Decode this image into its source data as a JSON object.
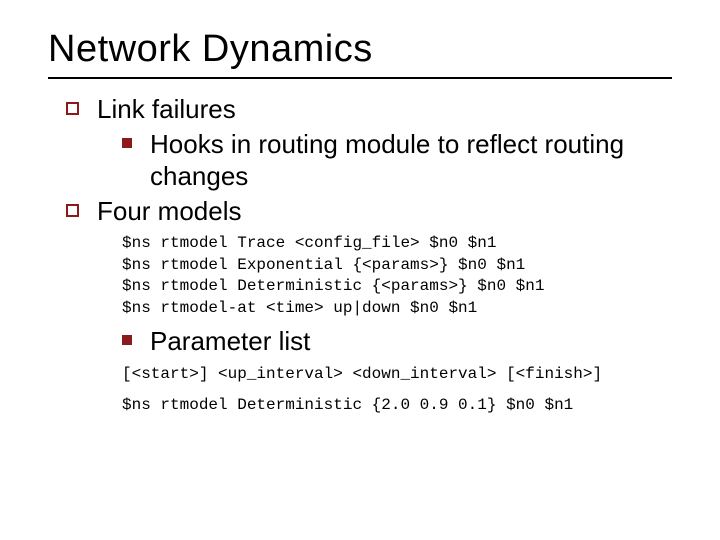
{
  "colors": {
    "background": "#ffffff",
    "text": "#000000",
    "bullet": "#8b1a1a",
    "rule": "#000000"
  },
  "typography": {
    "title_family": "Verdana",
    "title_size_pt": 38,
    "body_family": "Verdana",
    "body_size_pt": 26,
    "code_family": "Courier New",
    "code_size_pt": 16
  },
  "slide": {
    "title": "Network Dynamics",
    "items": {
      "link_failures": "Link failures",
      "hooks": "Hooks in routing module to reflect routing changes",
      "four_models": "Four models",
      "parameter_list": "Parameter list"
    },
    "code1": {
      "l0": "$ns rtmodel Trace <config_file> $n0 $n1",
      "l1": "$ns rtmodel Exponential {<params>} $n0 $n1",
      "l2": "$ns rtmodel Deterministic {<params>} $n0 $n1",
      "l3": "$ns rtmodel-at <time> up|down $n0 $n1"
    },
    "code2": "[<start>] <up_interval> <down_interval> [<finish>]",
    "code3": "$ns rtmodel Deterministic {2.0 0.9 0.1} $n0 $n1"
  }
}
